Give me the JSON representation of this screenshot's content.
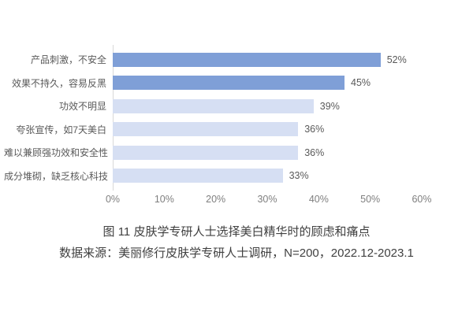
{
  "chart_data": {
    "type": "bar",
    "orientation": "horizontal",
    "title": "图 11 皮肤学专研人士选择美白精华时的顾虑和痛点",
    "source": "数据来源：美丽修行皮肤学专研人士调研，N=200，2022.12-2023.1",
    "categories": [
      "产品刺激，不安全",
      "效果不持久，容易反黑",
      "功效不明显",
      "夸张宣传，如7天美白",
      "难以兼顾强功效和安全性",
      "成分堆砌，缺乏核心科技"
    ],
    "values": [
      52,
      45,
      39,
      36,
      36,
      33
    ],
    "value_labels": [
      "52%",
      "45%",
      "39%",
      "36%",
      "36%",
      "33%"
    ],
    "bar_colors": [
      "#7f9fd7",
      "#7f9fd7",
      "#d6dff3",
      "#d6dff3",
      "#d6dff3",
      "#d6dff3"
    ],
    "x_ticks": [
      "0%",
      "10%",
      "20%",
      "30%",
      "40%",
      "50%",
      "60%"
    ],
    "xlim": [
      0,
      60
    ],
    "grid": false,
    "legend": false
  },
  "colors": {
    "bar_dark": "#7f9fd7",
    "bar_light": "#d6dff3",
    "axis_line": "#d9d9d9",
    "tick_label": "#7f7f7f",
    "category_label": "#595959",
    "value_label": "#595959",
    "caption_text": "#404040",
    "background": "#ffffff"
  }
}
